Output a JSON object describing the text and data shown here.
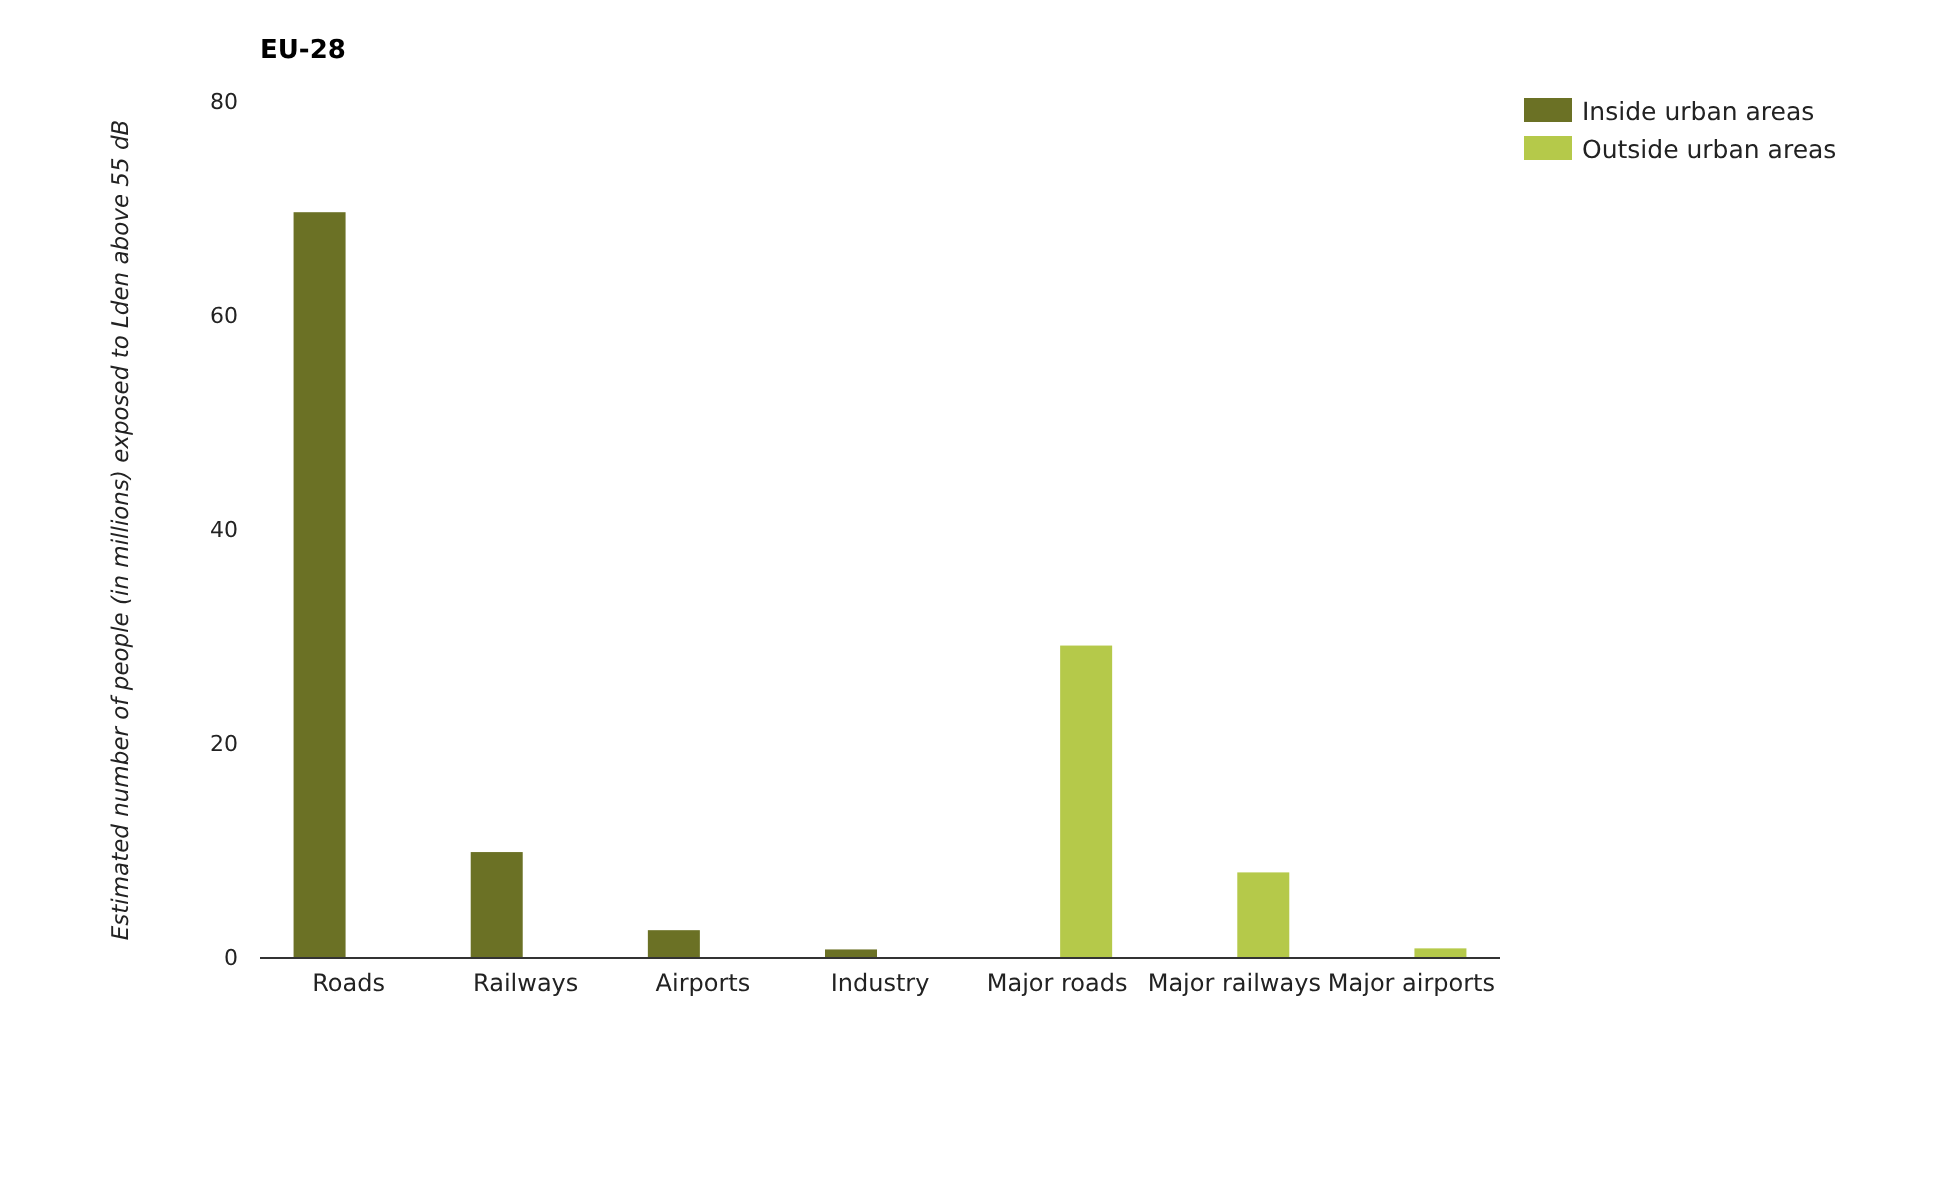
{
  "chart_data": {
    "type": "bar",
    "title": "EU-28",
    "ylabel": "Estimated number of people (in millions) exposed to Lden above 55 dB",
    "categories": [
      "Roads",
      "Railways",
      "Airports",
      "Industry",
      "Major roads",
      "Major railways",
      "Major airports"
    ],
    "series": [
      {
        "name": "Inside urban areas",
        "color": "#6b7125",
        "values": [
          69.7,
          9.9,
          2.6,
          0.8,
          null,
          null,
          null
        ]
      },
      {
        "name": "Outside urban areas",
        "color": "#b5c94a",
        "values": [
          null,
          null,
          null,
          null,
          29.2,
          8.0,
          0.9
        ]
      }
    ],
    "ylim": [
      0,
      80
    ],
    "yticks": [
      0,
      20,
      40,
      60,
      80
    ],
    "grid": false,
    "legend": "top right"
  }
}
